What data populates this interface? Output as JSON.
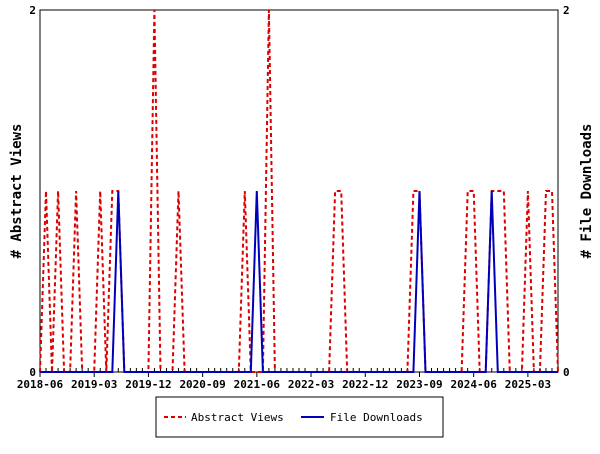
{
  "chart_data": {
    "type": "line",
    "title": "",
    "xlabel": "",
    "ylabel_left": "# Abstract Views",
    "ylabel_right": "# File Downloads",
    "ylim_left": [
      0,
      2
    ],
    "ylim_right": [
      0,
      2
    ],
    "yticks_left": [
      "0",
      "2"
    ],
    "yticks_right": [
      "0",
      "2"
    ],
    "grid": false,
    "legend_position": "bottom",
    "x_tick_labels": [
      "2018-06",
      "2019-03",
      "2019-12",
      "2020-09",
      "2021-06",
      "2022-03",
      "2022-12",
      "2023-09",
      "2024-06",
      "2025-03"
    ],
    "x": [
      "2018-06",
      "2018-07",
      "2018-08",
      "2018-09",
      "2018-10",
      "2018-11",
      "2018-12",
      "2019-01",
      "2019-02",
      "2019-03",
      "2019-04",
      "2019-05",
      "2019-06",
      "2019-07",
      "2019-08",
      "2019-09",
      "2019-10",
      "2019-11",
      "2019-12",
      "2020-01",
      "2020-02",
      "2020-03",
      "2020-04",
      "2020-05",
      "2020-06",
      "2020-07",
      "2020-08",
      "2020-09",
      "2020-10",
      "2020-11",
      "2020-12",
      "2021-01",
      "2021-02",
      "2021-03",
      "2021-04",
      "2021-05",
      "2021-06",
      "2021-07",
      "2021-08",
      "2021-09",
      "2021-10",
      "2021-11",
      "2021-12",
      "2022-01",
      "2022-02",
      "2022-03",
      "2022-04",
      "2022-05",
      "2022-06",
      "2022-07",
      "2022-08",
      "2022-09",
      "2022-10",
      "2022-11",
      "2022-12",
      "2023-01",
      "2023-02",
      "2023-03",
      "2023-04",
      "2023-05",
      "2023-06",
      "2023-07",
      "2023-08",
      "2023-09",
      "2023-10",
      "2023-11",
      "2023-12",
      "2024-01",
      "2024-02",
      "2024-03",
      "2024-04",
      "2024-05",
      "2024-06",
      "2024-07",
      "2024-08",
      "2024-09",
      "2024-10",
      "2024-11",
      "2024-12",
      "2025-01",
      "2025-02",
      "2025-03",
      "2025-04",
      "2025-05",
      "2025-06",
      "2025-07",
      "2025-08"
    ],
    "series": [
      {
        "name": "Abstract Views",
        "axis": "left",
        "color": "#dd0000",
        "dash": true,
        "values": [
          0,
          1,
          0,
          1,
          0,
          0,
          1,
          0,
          0,
          0,
          1,
          0,
          1,
          1,
          0,
          0,
          0,
          0,
          0,
          2,
          0,
          0,
          0,
          1,
          0,
          0,
          0,
          0,
          0,
          0,
          0,
          0,
          0,
          0,
          1,
          0,
          0,
          0,
          2,
          0,
          0,
          0,
          0,
          0,
          0,
          0,
          0,
          0,
          0,
          1,
          1,
          0,
          0,
          0,
          0,
          0,
          0,
          0,
          0,
          0,
          0,
          0,
          1,
          1,
          0,
          0,
          0,
          0,
          0,
          0,
          0,
          1,
          1,
          0,
          0,
          1,
          1,
          1,
          0,
          0,
          0,
          1,
          0,
          0,
          1,
          1,
          0
        ]
      },
      {
        "name": "File Downloads",
        "axis": "right",
        "color": "#0000bb",
        "dash": false,
        "values": [
          0,
          0,
          0,
          0,
          0,
          0,
          0,
          0,
          0,
          0,
          0,
          0,
          0,
          1,
          0,
          0,
          0,
          0,
          0,
          0,
          0,
          0,
          0,
          0,
          0,
          0,
          0,
          0,
          0,
          0,
          0,
          0,
          0,
          0,
          0,
          0,
          1,
          0,
          0,
          0,
          0,
          0,
          0,
          0,
          0,
          0,
          0,
          0,
          0,
          0,
          0,
          0,
          0,
          0,
          0,
          0,
          0,
          0,
          0,
          0,
          0,
          0,
          0,
          1,
          0,
          0,
          0,
          0,
          0,
          0,
          0,
          0,
          0,
          0,
          0,
          1,
          0,
          0,
          0,
          0,
          0,
          0,
          0,
          0,
          0,
          0,
          0
        ]
      }
    ]
  }
}
